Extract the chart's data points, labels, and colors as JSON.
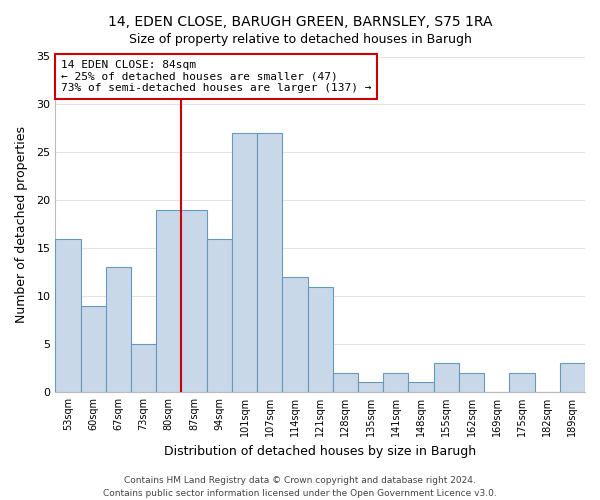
{
  "title1": "14, EDEN CLOSE, BARUGH GREEN, BARNSLEY, S75 1RA",
  "title2": "Size of property relative to detached houses in Barugh",
  "xlabel": "Distribution of detached houses by size in Barugh",
  "ylabel": "Number of detached properties",
  "footer1": "Contains HM Land Registry data © Crown copyright and database right 2024.",
  "footer2": "Contains public sector information licensed under the Open Government Licence v3.0.",
  "bar_color": "#c8d8e8",
  "bar_edge_color": "#6699bb",
  "annotation_box_color": "#ffffff",
  "annotation_box_edge": "#cc0000",
  "vline_color": "#cc0000",
  "categories": [
    "53sqm",
    "60sqm",
    "67sqm",
    "73sqm",
    "80sqm",
    "87sqm",
    "94sqm",
    "101sqm",
    "107sqm",
    "114sqm",
    "121sqm",
    "128sqm",
    "135sqm",
    "141sqm",
    "148sqm",
    "155sqm",
    "162sqm",
    "169sqm",
    "175sqm",
    "182sqm",
    "189sqm"
  ],
  "values": [
    16,
    9,
    13,
    5,
    19,
    19,
    16,
    27,
    27,
    12,
    11,
    2,
    1,
    2,
    1,
    3,
    2,
    0,
    2,
    0,
    3
  ],
  "ylim": [
    0,
    35
  ],
  "yticks": [
    0,
    5,
    10,
    15,
    20,
    25,
    30,
    35
  ],
  "vline_x_index": 4.5,
  "annotation_title": "14 EDEN CLOSE: 84sqm",
  "annotation_line1": "← 25% of detached houses are smaller (47)",
  "annotation_line2": "73% of semi-detached houses are larger (137) →",
  "title1_fontsize": 10,
  "title2_fontsize": 9,
  "xlabel_fontsize": 9,
  "ylabel_fontsize": 9,
  "xtick_fontsize": 7,
  "ytick_fontsize": 8,
  "annotation_fontsize": 8,
  "footer_fontsize": 6.5
}
